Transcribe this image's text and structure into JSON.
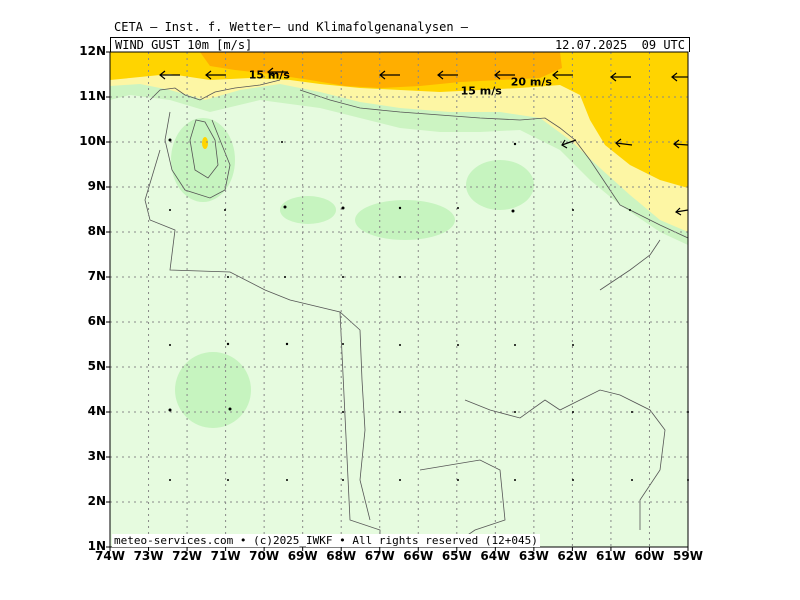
{
  "header": {
    "title": "CETA — Inst. f. Wetter— und Klimafolgenanalysen —",
    "parameter": "WIND_GUST_10m_[m/s]",
    "valid_time": "12.07.2025  09 UTC"
  },
  "footer": {
    "copyright": "meteo-services.com • (c)2025_IWKF • All rights reserved (12+045)"
  },
  "axes": {
    "y_ticks": [
      "12N",
      "11N",
      "10N",
      "9N",
      "8N",
      "7N",
      "6N",
      "5N",
      "4N",
      "3N",
      "2N",
      "1N"
    ],
    "x_ticks": [
      "74W",
      "73W",
      "72W",
      "71W",
      "70W",
      "69W",
      "68W",
      "67W",
      "66W",
      "65W",
      "64W",
      "63W",
      "62W",
      "61W",
      "60W",
      "59W"
    ],
    "lon_range": [
      -74,
      -59
    ],
    "lat_range": [
      1,
      12
    ],
    "grid": true
  },
  "contour_labels": [
    {
      "text": "15 m/s",
      "lon": -70.4,
      "lat": 11.5
    },
    {
      "text": "20 m/s",
      "lon": -63.6,
      "lat": 11.35
    },
    {
      "text": "15 m/s",
      "lon": -64.9,
      "lat": 11.15
    }
  ],
  "colors": {
    "lightgreen": "#e6fbdf",
    "green": "#c6f4bf",
    "midgreen": "#ccf4c2",
    "lightyellow": "#fdf6a4",
    "yellow": "#ffd400",
    "orange": "#ffae00"
  }
}
